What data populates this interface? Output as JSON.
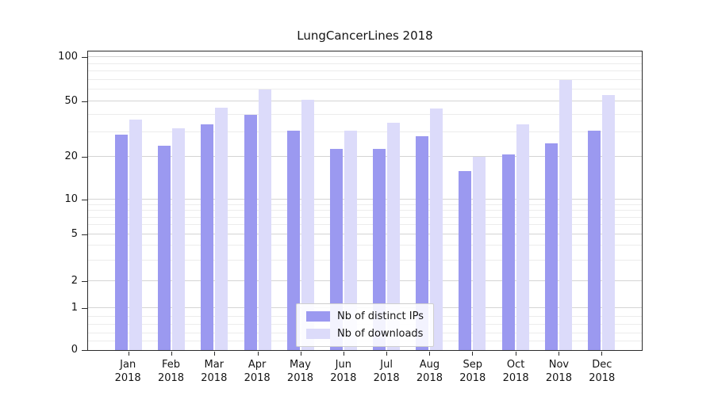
{
  "chart": {
    "title": "LungCancerLines 2018"
  },
  "chart_data": {
    "type": "bar",
    "title": "LungCancerLines 2018",
    "categories": [
      "Jan 2018",
      "Feb 2018",
      "Mar 2018",
      "Apr 2018",
      "May 2018",
      "Jun 2018",
      "Jul 2018",
      "Aug 2018",
      "Sep 2018",
      "Oct 2018",
      "Nov 2018",
      "Dec 2018"
    ],
    "series": [
      {
        "name": "Nb of distinct IPs",
        "color": "#9b99f0",
        "values": [
          29,
          24,
          34,
          40,
          31,
          23,
          23,
          28,
          16,
          21,
          25,
          31
        ]
      },
      {
        "name": "Nb of downloads",
        "color": "#dcdbfa",
        "values": [
          37,
          32,
          45,
          60,
          51,
          31,
          35,
          44,
          20,
          34,
          70,
          55
        ]
      }
    ],
    "yscale": "symlog",
    "yticks": [
      0,
      1,
      2,
      5,
      10,
      20,
      50,
      100
    ],
    "ylim": [
      0,
      110
    ],
    "grid": true,
    "legend_position": "lower center"
  }
}
